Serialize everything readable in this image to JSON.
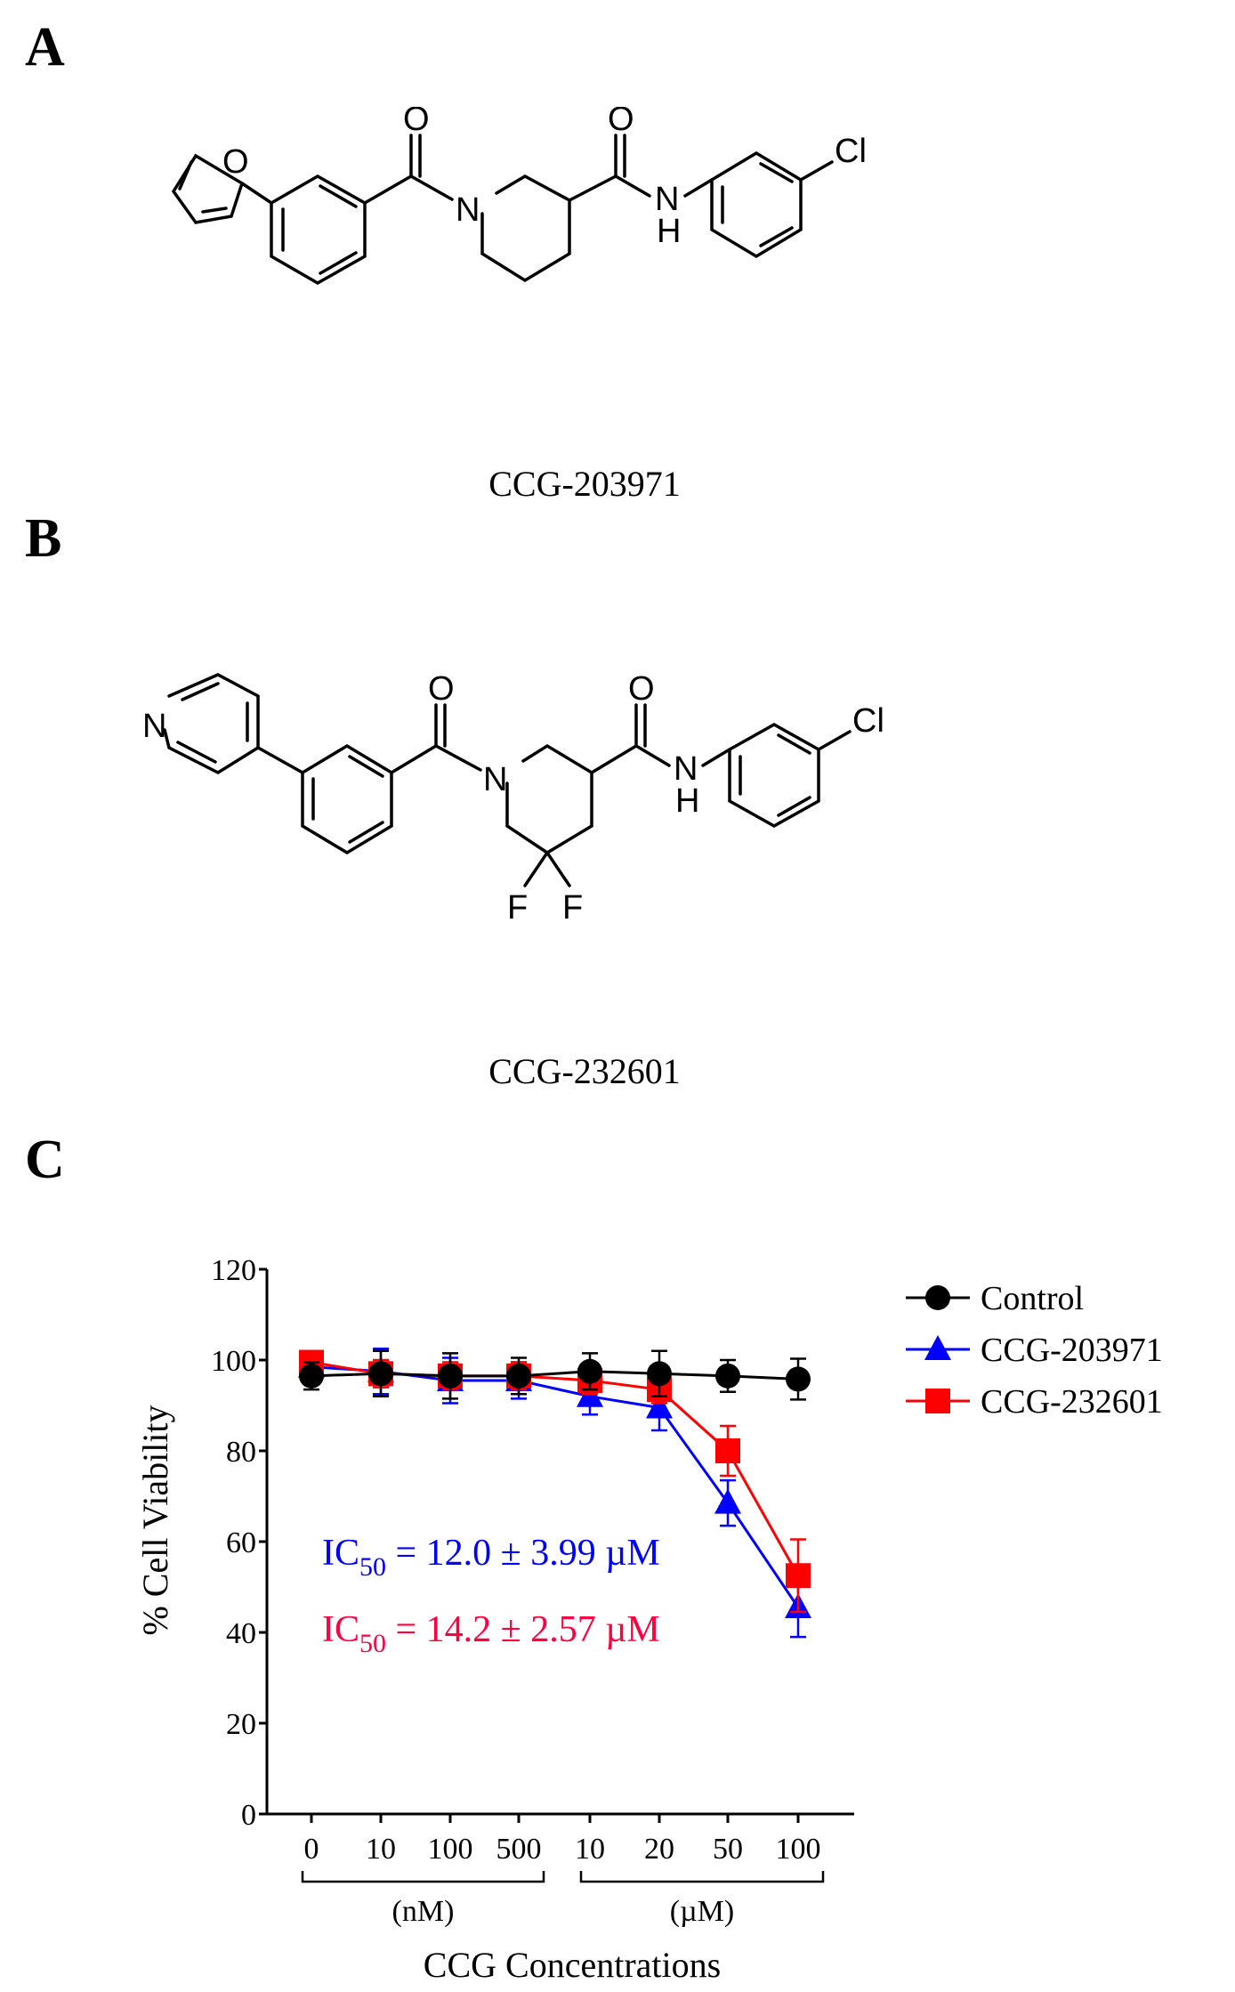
{
  "panels": {
    "a": {
      "letter": "A",
      "caption": "CCG-203971",
      "atoms": {
        "o_furan": "O",
        "o_carbonyl1": "O",
        "o_carbonyl2": "O",
        "n_ring": "N",
        "n_amide": "N",
        "h_amide": "H",
        "cl": "Cl"
      }
    },
    "b": {
      "letter": "B",
      "caption": "CCG-232601",
      "atoms": {
        "n_pyridine": "N",
        "o_carbonyl1": "O",
        "o_carbonyl2": "O",
        "n_ring": "N",
        "n_amide": "N",
        "h_amide": "H",
        "cl": "Cl",
        "f1": "F",
        "f2": "F"
      }
    },
    "c": {
      "letter": "C"
    }
  },
  "chart_data": {
    "type": "line",
    "ylabel": "% Cell Viability",
    "xlabel": "CCG Concentrations",
    "ylim": [
      0,
      120
    ],
    "yticks": [
      0,
      20,
      40,
      60,
      80,
      100,
      120
    ],
    "categories": [
      "0",
      "10",
      "100",
      "500",
      "10",
      "20",
      "50",
      "100"
    ],
    "groups": [
      {
        "label": "(nM)",
        "from": 0,
        "to": 3
      },
      {
        "label": "(µM)",
        "from": 4,
        "to": 7
      }
    ],
    "series": [
      {
        "name": "Control",
        "color": "#000000",
        "marker": "circle",
        "values": [
          96.5,
          97,
          96.5,
          96.5,
          97.5,
          97,
          96.5,
          95.8
        ],
        "errors": [
          3,
          5,
          5,
          4,
          4,
          5,
          3.5,
          4.5
        ]
      },
      {
        "name": "CCG-203971",
        "color": "#0000ff",
        "marker": "triangle",
        "values": [
          98.5,
          97.5,
          95.5,
          95.5,
          92,
          89.5,
          68.5,
          45.5
        ],
        "errors": [
          2,
          5,
          5,
          4,
          4,
          5,
          5,
          6.5
        ]
      },
      {
        "name": "CCG-232601",
        "color": "#ff0000",
        "marker": "square",
        "values": [
          99.5,
          97,
          96.5,
          96.5,
          95.5,
          93.5,
          80,
          52.5
        ],
        "errors": [
          2,
          3,
          3,
          3,
          3,
          3,
          5.5,
          8
        ]
      }
    ],
    "annotations": [
      {
        "prefix": "IC",
        "sub": "50",
        "text": " = 12.0 ± 3.99 µM",
        "color": "#0000ff"
      },
      {
        "prefix": "IC",
        "sub": "50",
        "text": " = 14.2 ± 2.57 µM",
        "color": "#ff0040"
      }
    ]
  }
}
